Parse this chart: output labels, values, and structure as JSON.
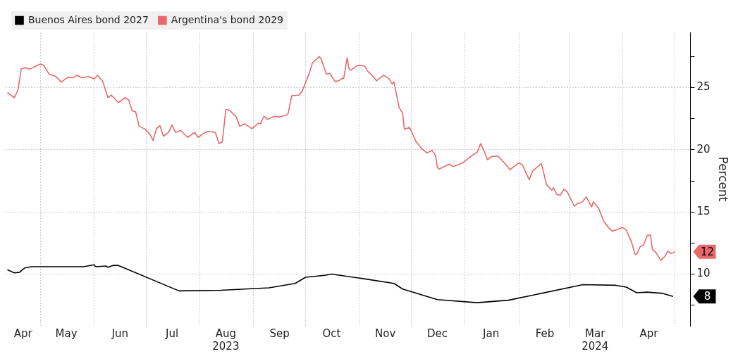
{
  "chart_data": {
    "type": "line",
    "y2label": "Percent",
    "xlim": [
      "2023-04-11",
      "2024-05-10"
    ],
    "ylim": [
      5.84,
      29.45
    ],
    "yticks": [
      {
        "value": 7.5,
        "label": null
      },
      10,
      {
        "value": 12.5,
        "label": null
      },
      15,
      {
        "value": 17.5,
        "label": null
      },
      20,
      {
        "value": 22.5,
        "label": null
      },
      25,
      {
        "value": 27.5,
        "label": null
      }
    ],
    "xticks": [
      {
        "value": "2023-04-21",
        "label": "Apr"
      },
      {
        "value": "2023-05-01",
        "label": null
      },
      {
        "value": "2023-05-16",
        "label": "May"
      },
      {
        "value": "2023-06-01",
        "label": null
      },
      {
        "value": "2023-06-16",
        "label": "Jun"
      },
      {
        "value": "2023-07-01",
        "label": null
      },
      {
        "value": "2023-07-16",
        "label": "Jul"
      },
      {
        "value": "2023-08-01",
        "label": null
      },
      {
        "value": "2023-08-16",
        "label": "Aug\n2023"
      },
      {
        "value": "2023-09-01",
        "label": null
      },
      {
        "value": "2023-09-16",
        "label": "Sep"
      },
      {
        "value": "2023-10-01",
        "label": null
      },
      {
        "value": "2023-10-16",
        "label": "Oct"
      },
      {
        "value": "2023-11-01",
        "label": null
      },
      {
        "value": "2023-11-16",
        "label": "Nov"
      },
      {
        "value": "2023-12-01",
        "label": null
      },
      {
        "value": "2023-12-16",
        "label": "Dec"
      },
      {
        "value": "2024-01-01",
        "label": null
      },
      {
        "value": "2024-01-16",
        "label": "Jan"
      },
      {
        "value": "2024-02-01",
        "label": null
      },
      {
        "value": "2024-02-16",
        "label": "Feb"
      },
      {
        "value": "2024-03-01",
        "label": null
      },
      {
        "value": "2024-03-16",
        "label": "Mar\n2024"
      },
      {
        "value": "2024-04-01",
        "label": null
      },
      {
        "value": "2024-04-16",
        "label": "Apr"
      },
      {
        "value": "2024-05-01",
        "label": null
      }
    ],
    "grid": true,
    "legend": "top left",
    "series": [
      {
        "name": "Buenos Aires bond 2027",
        "color": "#000000",
        "x": [
          "2023-04-12",
          "2023-04-16",
          "2023-04-19",
          "2023-04-22",
          "2023-04-26",
          "2023-05-26",
          "2023-06-01",
          "2023-06-02",
          "2023-06-08",
          "2023-06-09",
          "2023-06-12",
          "2023-06-15",
          "2023-07-20",
          "2023-08-13",
          "2023-09-10",
          "2023-09-25",
          "2023-10-01",
          "2023-10-12",
          "2023-10-16",
          "2023-11-05",
          "2023-11-21",
          "2023-11-26",
          "2023-12-16",
          "2024-01-08",
          "2024-01-26",
          "2024-03-09",
          "2024-03-28",
          "2024-04-03",
          "2024-04-09",
          "2024-04-15",
          "2024-04-24",
          "2024-04-30"
        ],
        "values": [
          10.35,
          10.1,
          10.15,
          10.5,
          10.6,
          10.6,
          10.75,
          10.6,
          10.65,
          10.55,
          10.7,
          10.7,
          8.65,
          8.7,
          8.9,
          9.25,
          9.75,
          9.9,
          10.0,
          9.6,
          9.25,
          8.8,
          7.95,
          7.7,
          7.9,
          9.15,
          9.1,
          8.95,
          8.5,
          8.55,
          8.45,
          8.2
        ]
      },
      {
        "name": "Argentina's bond 2029",
        "color": "#e8696b",
        "x": [
          "2023-04-12",
          "2023-04-16",
          "2023-04-18",
          "2023-04-20",
          "2023-04-22",
          "2023-04-25",
          "2023-04-28",
          "2023-05-01",
          "2023-05-03",
          "2023-05-06",
          "2023-05-10",
          "2023-05-13",
          "2023-05-17",
          "2023-05-20",
          "2023-05-22",
          "2023-05-25",
          "2023-05-29",
          "2023-06-01",
          "2023-06-03",
          "2023-06-06",
          "2023-06-09",
          "2023-06-11",
          "2023-06-15",
          "2023-06-19",
          "2023-06-21",
          "2023-06-23",
          "2023-06-25",
          "2023-06-27",
          "2023-06-30",
          "2023-07-03",
          "2023-07-05",
          "2023-07-07",
          "2023-07-09",
          "2023-07-11",
          "2023-07-14",
          "2023-07-16",
          "2023-07-18",
          "2023-07-21",
          "2023-07-25",
          "2023-07-29",
          "2023-07-31",
          "2023-08-04",
          "2023-08-06",
          "2023-08-10",
          "2023-08-12",
          "2023-08-14",
          "2023-08-16",
          "2023-08-18",
          "2023-08-22",
          "2023-08-24",
          "2023-08-27",
          "2023-08-31",
          "2023-09-04",
          "2023-09-05",
          "2023-09-07",
          "2023-09-09",
          "2023-09-13",
          "2023-09-16",
          "2023-09-20",
          "2023-09-21",
          "2023-09-23",
          "2023-09-27",
          "2023-09-29",
          "2023-10-03",
          "2023-10-05",
          "2023-10-09",
          "2023-10-10",
          "2023-10-13",
          "2023-10-15",
          "2023-10-18",
          "2023-10-20",
          "2023-10-22",
          "2023-10-23",
          "2023-10-25",
          "2023-10-26",
          "2023-10-27",
          "2023-10-31",
          "2023-11-04",
          "2023-11-06",
          "2023-11-08",
          "2023-11-11",
          "2023-11-15",
          "2023-11-18",
          "2023-11-20",
          "2023-11-21",
          "2023-11-24",
          "2023-11-26",
          "2023-11-27",
          "2023-11-30",
          "2023-12-04",
          "2023-12-07",
          "2023-12-10",
          "2023-12-13",
          "2023-12-15",
          "2023-12-16",
          "2023-12-17",
          "2023-12-20",
          "2023-12-23",
          "2023-12-25",
          "2023-12-29",
          "2023-12-31",
          "2024-01-05",
          "2024-01-08",
          "2024-01-10",
          "2024-01-12",
          "2024-01-14",
          "2024-01-16",
          "2024-01-20",
          "2024-01-24",
          "2024-01-27",
          "2024-02-01",
          "2024-02-03",
          "2024-02-07",
          "2024-02-09",
          "2024-02-14",
          "2024-02-17",
          "2024-02-20",
          "2024-02-21",
          "2024-02-23",
          "2024-02-25",
          "2024-02-27",
          "2024-02-29",
          "2024-03-04",
          "2024-03-06",
          "2024-03-08",
          "2024-03-11",
          "2024-03-14",
          "2024-03-15",
          "2024-03-18",
          "2024-03-21",
          "2024-03-24",
          "2024-03-26",
          "2024-03-30",
          "2024-04-01",
          "2024-04-03",
          "2024-04-06",
          "2024-04-08",
          "2024-04-09",
          "2024-04-11",
          "2024-04-13",
          "2024-04-15",
          "2024-04-17",
          "2024-04-18",
          "2024-04-20",
          "2024-04-23",
          "2024-04-25",
          "2024-04-27",
          "2024-04-29",
          "2024-05-01"
        ],
        "values": [
          24.6,
          24.2,
          24.75,
          26.5,
          26.6,
          26.5,
          26.7,
          26.9,
          26.8,
          26.1,
          25.9,
          25.45,
          25.85,
          25.8,
          26.0,
          25.8,
          25.9,
          25.7,
          26.0,
          25.5,
          24.2,
          24.4,
          23.8,
          24.2,
          24.0,
          23.15,
          23.05,
          21.9,
          21.7,
          21.3,
          20.75,
          21.7,
          21.95,
          21.1,
          21.4,
          22.0,
          21.4,
          21.55,
          21.0,
          21.4,
          21.0,
          21.4,
          21.5,
          21.4,
          20.5,
          20.65,
          23.25,
          23.2,
          22.65,
          21.9,
          22.1,
          21.7,
          22.15,
          22.1,
          22.7,
          22.45,
          22.7,
          22.65,
          22.8,
          22.95,
          24.35,
          24.4,
          24.7,
          26.1,
          27.0,
          27.5,
          27.3,
          26.1,
          26.15,
          25.5,
          25.55,
          25.75,
          25.75,
          27.4,
          26.55,
          26.4,
          26.8,
          26.75,
          26.3,
          26.05,
          25.55,
          26.0,
          25.75,
          25.3,
          25.45,
          23.4,
          22.95,
          21.65,
          21.8,
          20.6,
          20.1,
          19.75,
          19.95,
          19.55,
          18.6,
          18.45,
          18.65,
          18.85,
          18.65,
          18.85,
          19.0,
          19.55,
          19.8,
          20.5,
          19.9,
          19.2,
          19.45,
          19.5,
          18.9,
          18.4,
          18.95,
          18.8,
          17.6,
          18.3,
          18.9,
          17.2,
          16.75,
          16.95,
          16.4,
          16.35,
          16.85,
          16.6,
          15.45,
          15.7,
          15.75,
          16.2,
          15.4,
          15.8,
          15.3,
          14.25,
          13.7,
          13.45,
          13.65,
          13.75,
          13.55,
          12.6,
          11.6,
          11.6,
          12.2,
          12.35,
          13.1,
          13.15,
          12.0,
          11.75,
          11.1,
          11.4,
          11.85,
          11.65,
          11.8
        ]
      }
    ],
    "annotations": [
      {
        "text": "12",
        "x": "2024-05-01",
        "y": 11.8
      },
      {
        "text": "8",
        "x": "2024-04-30",
        "y": 8.2
      }
    ]
  }
}
